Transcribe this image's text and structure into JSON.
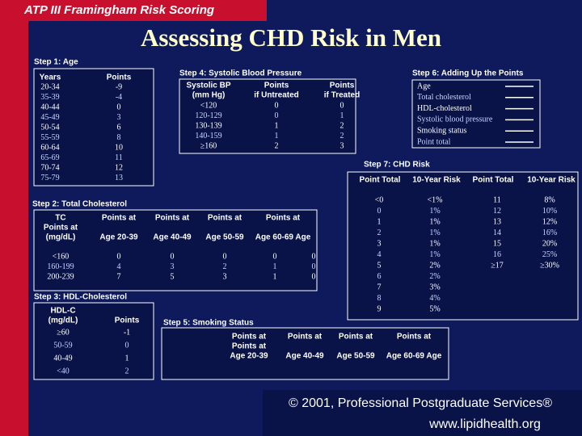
{
  "header": {
    "top_label": "ATP III Framingham Risk Scoring",
    "title": "Assessing CHD Risk in Men"
  },
  "step1": {
    "title": "Step 1: Age",
    "columns": [
      "Years",
      "Points"
    ],
    "rows": [
      [
        "20-34",
        "-9"
      ],
      [
        "35-39",
        "-4"
      ],
      [
        "40-44",
        "0"
      ],
      [
        "45-49",
        "3"
      ],
      [
        "50-54",
        "6"
      ],
      [
        "55-59",
        "8"
      ],
      [
        "60-64",
        "10"
      ],
      [
        "65-69",
        "11"
      ],
      [
        "70-74",
        "12"
      ],
      [
        "75-79",
        "13"
      ]
    ]
  },
  "step2": {
    "title": "Step 2: Total Cholesterol",
    "columns": [
      [
        "TC",
        "Points at",
        "(mg/dL)"
      ],
      [
        "Points at",
        "Age 20-39"
      ],
      [
        "Points at",
        "Age 40-49"
      ],
      [
        "Points at",
        "Age 50-59"
      ],
      [
        "Points at",
        "Age 60-69 Age"
      ]
    ],
    "rows": [
      [
        "<160",
        "0",
        "0",
        "0",
        "0",
        "0"
      ],
      [
        "160-199",
        "4",
        "3",
        "2",
        "1",
        "0"
      ],
      [
        "200-239",
        "7",
        "5",
        "3",
        "1",
        "0"
      ]
    ]
  },
  "step3": {
    "title": "Step 3: HDL-Cholesterol",
    "columns": [
      [
        "HDL-C",
        "(mg/dL)"
      ],
      [
        "Points"
      ]
    ],
    "rows": [
      [
        "≥60",
        "-1"
      ],
      [
        "50-59",
        "0"
      ],
      [
        "40-49",
        "1"
      ],
      [
        "<40",
        "2"
      ]
    ]
  },
  "step4": {
    "title": "Step 4: Systolic Blood Pressure",
    "columns": [
      [
        "Systolic BP",
        "(mm Hg)"
      ],
      [
        "Points",
        "if Untreated"
      ],
      [
        "Points",
        "if Treated"
      ]
    ],
    "rows": [
      [
        "<120",
        "0",
        "0"
      ],
      [
        "120-129",
        "0",
        "1"
      ],
      [
        "130-139",
        "1",
        "2"
      ],
      [
        "140-159",
        "1",
        "2"
      ],
      [
        "≥160",
        "2",
        "3"
      ]
    ]
  },
  "step5": {
    "title": "Step 5: Smoking Status",
    "columns": [
      [
        "Points at",
        "Points at",
        "Age 20-39"
      ],
      [
        "Points at",
        "Age 40-49"
      ],
      [
        "Points at",
        "Age 50-59"
      ],
      [
        "Points at",
        "Age 60-69 Age"
      ]
    ]
  },
  "step6": {
    "title": "Step 6: Adding Up the Points",
    "items": [
      "Age",
      "Total cholesterol",
      "HDL-cholesterol",
      "Systolic blood pressure",
      "Smoking status",
      "Point total"
    ]
  },
  "step7": {
    "title": "Step 7: CHD Risk",
    "columns": [
      "Point Total",
      "10-Year Risk",
      "Point Total",
      "10-Year Risk"
    ],
    "left_rows": [
      [
        "<0",
        "<1%"
      ],
      [
        "0",
        "1%"
      ],
      [
        "1",
        "1%"
      ],
      [
        "2",
        "1%"
      ],
      [
        "3",
        "1%"
      ],
      [
        "4",
        "1%"
      ],
      [
        "5",
        "2%"
      ],
      [
        "6",
        "2%"
      ],
      [
        "7",
        "3%"
      ],
      [
        "8",
        "4%"
      ],
      [
        "9",
        "5%"
      ]
    ],
    "right_rows": [
      [
        "11",
        "8%"
      ],
      [
        "12",
        "10%"
      ],
      [
        "13",
        "12%"
      ],
      [
        "14",
        "16%"
      ],
      [
        "15",
        "20%"
      ],
      [
        "16",
        "25%"
      ],
      [
        "≥17",
        "≥30%"
      ]
    ]
  },
  "footer": {
    "copyright": "© 2001, Professional Postgraduate Services®",
    "url": "www.lipidhealth.org"
  }
}
